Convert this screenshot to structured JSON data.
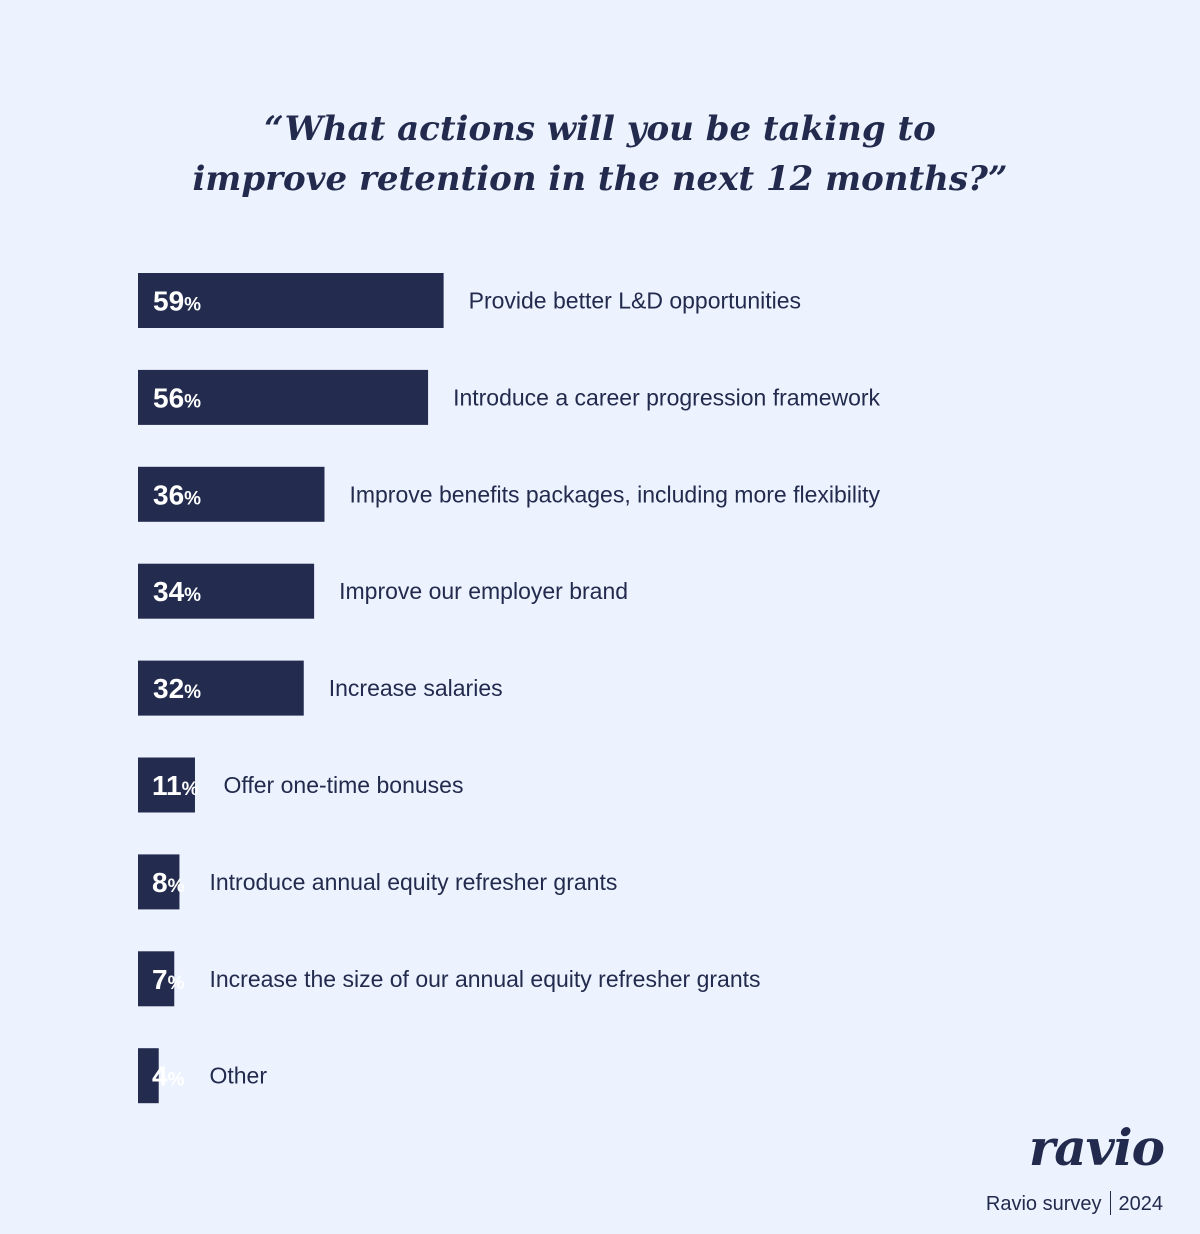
{
  "title_lines": [
    "“What actions will you be taking to",
    "improve retention in the next 12 months?”"
  ],
  "chart_data": {
    "type": "bar",
    "orientation": "horizontal",
    "title": "“What actions will you be taking to improve retention in the next 12 months?”",
    "categories": [
      "Provide better L&D opportunities",
      "Introduce a career progression framework",
      "Improve benefits packages, including more flexibility",
      "Improve our employer brand",
      "Increase salaries",
      "Offer one-time bonuses",
      "Introduce annual equity refresher grants",
      "Increase the size of our annual equity refresher grants",
      "Other"
    ],
    "values": [
      59,
      56,
      36,
      34,
      32,
      11,
      8,
      7,
      4
    ],
    "unit": "%",
    "colors": {
      "bar": "#232C4F",
      "label_on_bar": "#FFFFFF",
      "label_off_bar": "#222B4D",
      "background": "#ECF2FE"
    }
  },
  "brand": {
    "logo": "ravio",
    "source": "Ravio survey",
    "year": "2024"
  }
}
